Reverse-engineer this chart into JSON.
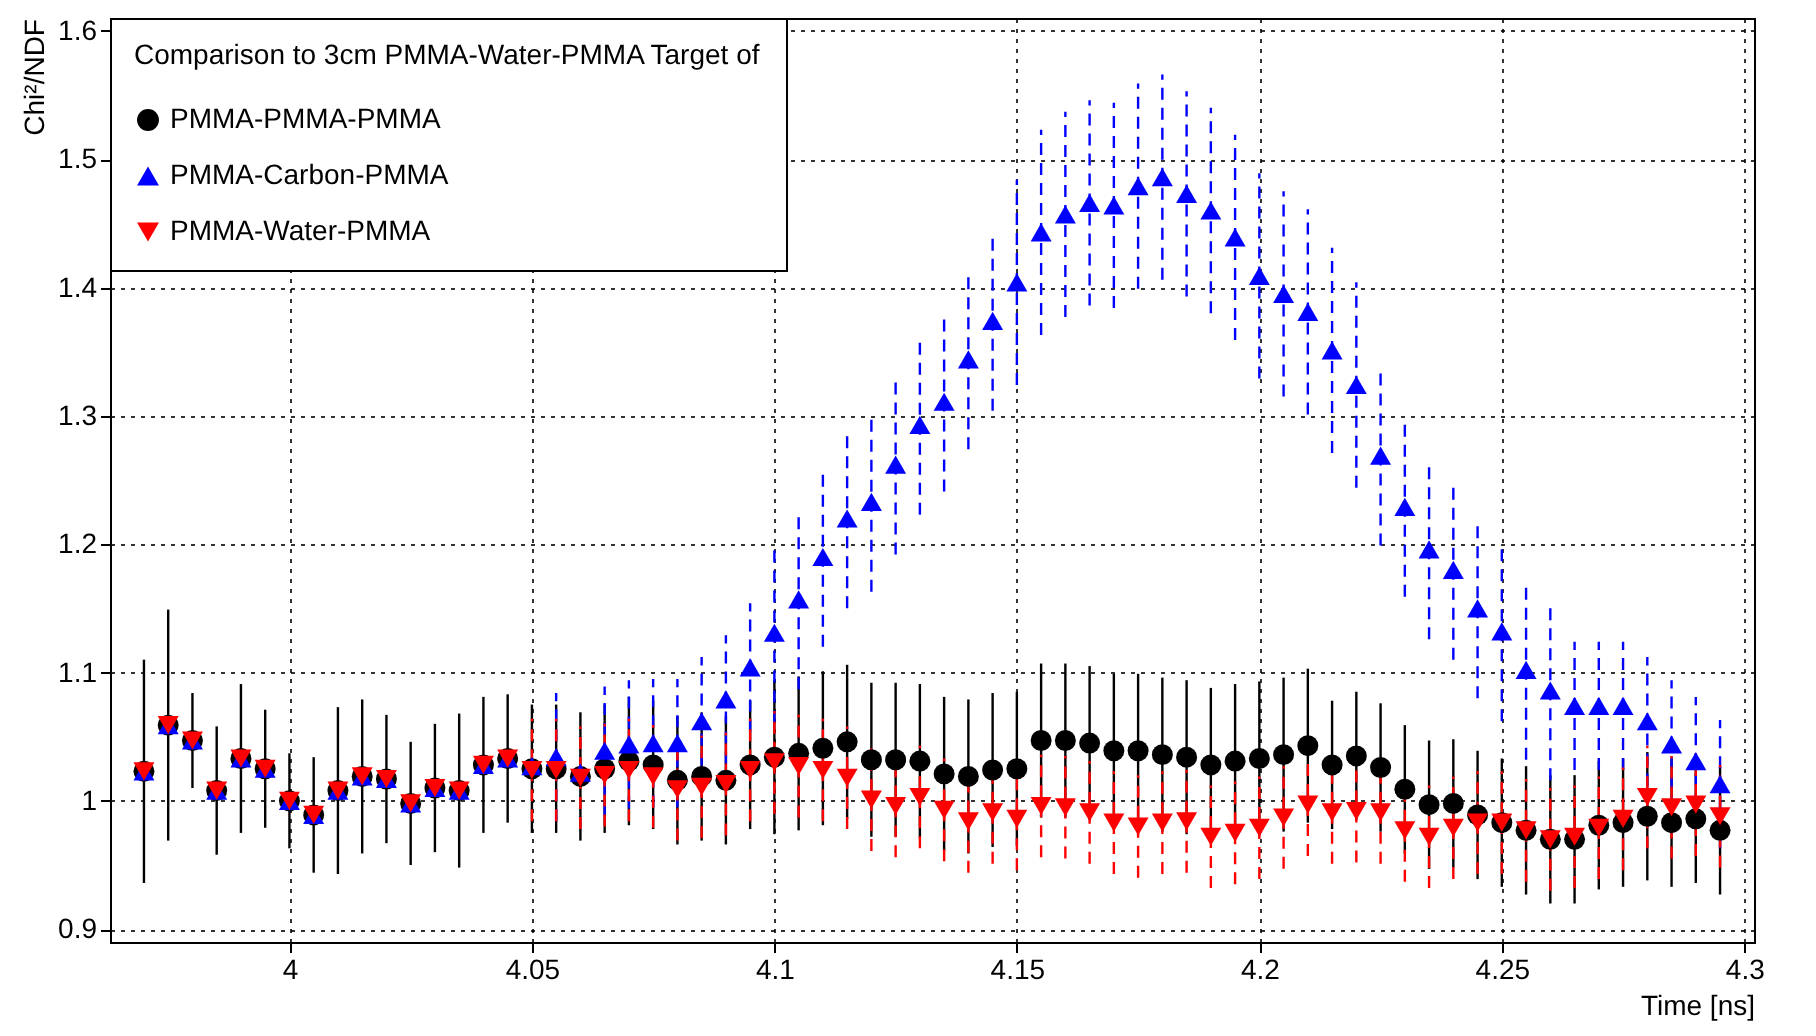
{
  "chart_data": {
    "type": "scatter",
    "xlabel": "Time [ns]",
    "ylabel": "Chi²/NDF",
    "legend_title": "Comparison to 3cm PMMA-Water-PMMA Target of",
    "legend": "top left",
    "grid": true,
    "xlim": [
      3.963,
      4.302
    ],
    "xticks": [
      4,
      4.05,
      4.1,
      4.15,
      4.2,
      4.25,
      4.3
    ],
    "ylim": [
      0.89,
      1.61
    ],
    "yticks": [
      0.9,
      1,
      1.1,
      1.2,
      1.3,
      1.4,
      1.5,
      1.6
    ],
    "x": [
      3.97,
      3.975,
      3.98,
      3.985,
      3.99,
      3.995,
      4.0,
      4.005,
      4.01,
      4.015,
      4.02,
      4.025,
      4.03,
      4.035,
      4.04,
      4.045,
      4.05,
      4.055,
      4.06,
      4.065,
      4.07,
      4.075,
      4.08,
      4.085,
      4.09,
      4.095,
      4.1,
      4.105,
      4.11,
      4.115,
      4.12,
      4.125,
      4.13,
      4.135,
      4.14,
      4.145,
      4.15,
      4.155,
      4.16,
      4.165,
      4.17,
      4.175,
      4.18,
      4.185,
      4.19,
      4.195,
      4.2,
      4.205,
      4.21,
      4.215,
      4.22,
      4.225,
      4.23,
      4.235,
      4.24,
      4.245,
      4.25,
      4.255,
      4.26,
      4.265,
      4.27,
      4.275,
      4.28,
      4.285,
      4.29,
      4.295
    ],
    "series": [
      {
        "name": "PMMA-PMMA-PMMA",
        "color": "#000000",
        "marker": "circle",
        "line_style": "solid",
        "values": [
          1.023,
          1.059,
          1.047,
          1.008,
          1.033,
          1.025,
          1.0,
          0.989,
          1.008,
          1.019,
          1.017,
          0.998,
          1.01,
          1.008,
          1.028,
          1.033,
          1.025,
          1.025,
          1.019,
          1.025,
          1.031,
          1.028,
          1.016,
          1.019,
          1.016,
          1.028,
          1.034,
          1.037,
          1.041,
          1.046,
          1.032,
          1.032,
          1.031,
          1.021,
          1.019,
          1.024,
          1.025,
          1.047,
          1.047,
          1.045,
          1.039,
          1.039,
          1.036,
          1.034,
          1.028,
          1.031,
          1.033,
          1.036,
          1.043,
          1.028,
          1.035,
          1.026,
          1.009,
          0.997,
          0.998,
          0.989,
          0.983,
          0.977,
          0.97,
          0.97,
          0.981,
          0.983,
          0.988,
          0.983,
          0.986,
          0.977
        ],
        "errors": [
          0.087,
          0.09,
          0.037,
          0.05,
          0.058,
          0.046,
          0.037,
          0.045,
          0.065,
          0.06,
          0.05,
          0.048,
          0.05,
          0.06,
          0.053,
          0.05,
          0.05,
          0.05,
          0.05,
          0.05,
          0.05,
          0.05,
          0.05,
          0.05,
          0.05,
          0.05,
          0.06,
          0.06,
          0.06,
          0.06,
          0.06,
          0.06,
          0.06,
          0.06,
          0.06,
          0.06,
          0.06,
          0.06,
          0.06,
          0.06,
          0.06,
          0.06,
          0.06,
          0.06,
          0.06,
          0.06,
          0.06,
          0.06,
          0.06,
          0.05,
          0.05,
          0.05,
          0.05,
          0.05,
          0.05,
          0.05,
          0.05,
          0.05,
          0.05,
          0.05,
          0.05,
          0.05,
          0.05,
          0.05,
          0.05,
          0.05
        ]
      },
      {
        "name": "PMMA-Carbon-PMMA",
        "color": "#0000ff",
        "marker": "triangle",
        "line_style": "dashed",
        "values": [
          1.023,
          1.059,
          1.047,
          1.008,
          1.033,
          1.025,
          1.0,
          0.989,
          1.008,
          1.019,
          1.017,
          0.998,
          1.01,
          1.008,
          1.028,
          1.033,
          1.027,
          1.034,
          1.022,
          1.039,
          1.044,
          1.045,
          1.045,
          1.062,
          1.079,
          1.104,
          1.131,
          1.157,
          1.19,
          1.22,
          1.233,
          1.262,
          1.293,
          1.311,
          1.344,
          1.374,
          1.404,
          1.443,
          1.457,
          1.466,
          1.464,
          1.479,
          1.486,
          1.473,
          1.46,
          1.439,
          1.409,
          1.395,
          1.381,
          1.351,
          1.324,
          1.269,
          1.229,
          1.196,
          1.18,
          1.15,
          1.132,
          1.102,
          1.086,
          1.074,
          1.074,
          1.074,
          1.062,
          1.044,
          1.031,
          1.013
        ],
        "errors": [
          null,
          null,
          null,
          null,
          null,
          null,
          null,
          null,
          null,
          null,
          null,
          null,
          null,
          null,
          null,
          null,
          null,
          0.05,
          null,
          0.05,
          0.05,
          0.05,
          0.05,
          0.05,
          0.05,
          0.05,
          0.07,
          0.07,
          0.07,
          0.07,
          0.07,
          0.07,
          0.07,
          0.07,
          0.07,
          0.07,
          0.08,
          0.08,
          0.08,
          0.08,
          0.08,
          0.08,
          0.08,
          0.08,
          0.08,
          0.08,
          0.08,
          0.08,
          0.08,
          0.08,
          0.08,
          0.07,
          0.07,
          0.07,
          0.07,
          0.07,
          0.07,
          0.07,
          0.07,
          0.05,
          0.05,
          0.05,
          0.05,
          0.05,
          0.05,
          0.05
        ]
      },
      {
        "name": "PMMA-Water-PMMA",
        "color": "#ff0000",
        "marker": "triangle-down",
        "line_style": "dashed",
        "values": [
          1.023,
          1.059,
          1.047,
          1.008,
          1.033,
          1.025,
          1.0,
          0.989,
          1.008,
          1.019,
          1.017,
          0.998,
          1.01,
          1.008,
          1.028,
          1.033,
          1.024,
          1.024,
          1.018,
          1.02,
          1.024,
          1.019,
          1.009,
          1.011,
          1.013,
          1.024,
          1.03,
          1.027,
          1.024,
          1.018,
          1.001,
          0.996,
          1.003,
          0.993,
          0.984,
          0.991,
          0.986,
          0.996,
          0.995,
          0.991,
          0.983,
          0.98,
          0.983,
          0.984,
          0.972,
          0.975,
          0.979,
          0.987,
          0.997,
          0.991,
          0.992,
          0.991,
          0.977,
          0.972,
          0.979,
          0.983,
          0.983,
          0.977,
          0.97,
          0.972,
          0.979,
          0.986,
          1.003,
          0.995,
          0.997,
          0.988
        ],
        "errors": [
          null,
          null,
          null,
          null,
          null,
          null,
          null,
          null,
          null,
          null,
          null,
          null,
          null,
          null,
          null,
          null,
          0.04,
          0.04,
          0.04,
          0.04,
          0.04,
          0.04,
          0.04,
          0.04,
          0.04,
          0.04,
          0.04,
          0.04,
          0.04,
          0.04,
          0.04,
          0.04,
          0.04,
          0.04,
          0.04,
          0.04,
          0.04,
          0.04,
          0.04,
          0.04,
          0.04,
          0.04,
          0.04,
          0.04,
          0.04,
          0.04,
          0.04,
          0.04,
          0.04,
          0.04,
          0.04,
          0.04,
          0.04,
          0.04,
          0.04,
          0.04,
          0.04,
          0.04,
          0.04,
          0.04,
          0.04,
          0.04,
          0.04,
          0.04,
          0.04,
          0.04
        ]
      }
    ]
  }
}
